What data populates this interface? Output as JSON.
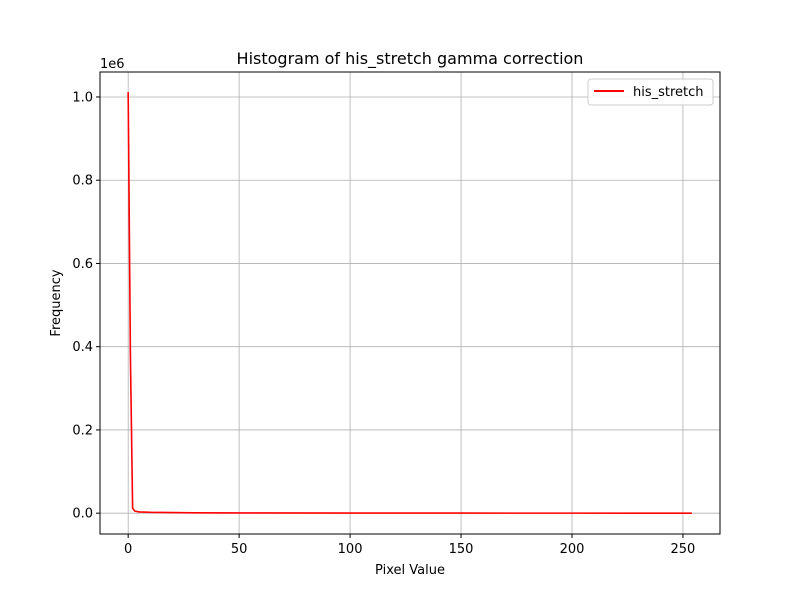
{
  "chart_data": {
    "type": "line",
    "title": "Histogram of his_stretch gamma correction",
    "xlabel": "Pixel Value",
    "ylabel": "Frequency",
    "y_offset_label": "1e6",
    "xlim": [
      -12.7,
      266.7
    ],
    "ylim": [
      -0.05,
      1.06
    ],
    "x_ticks": [
      0,
      50,
      100,
      150,
      200,
      250
    ],
    "x_tick_labels": [
      "0",
      "50",
      "100",
      "150",
      "200",
      "250"
    ],
    "y_ticks": [
      0.0,
      0.2,
      0.4,
      0.6,
      0.8,
      1.0
    ],
    "y_tick_labels": [
      "0.0",
      "0.2",
      "0.4",
      "0.6",
      "0.8",
      "1.0"
    ],
    "y_scale": 1000000,
    "grid": true,
    "legend_position": "top-right",
    "series": [
      {
        "name": "his_stretch",
        "color": "#ff0000",
        "x": [
          0,
          1,
          2,
          3,
          5,
          10,
          20,
          30,
          50,
          100,
          150,
          200,
          254
        ],
        "y": [
          1012000,
          380000,
          12000,
          5000,
          3000,
          2000,
          1500,
          1000,
          600,
          300,
          200,
          150,
          100
        ]
      }
    ]
  }
}
